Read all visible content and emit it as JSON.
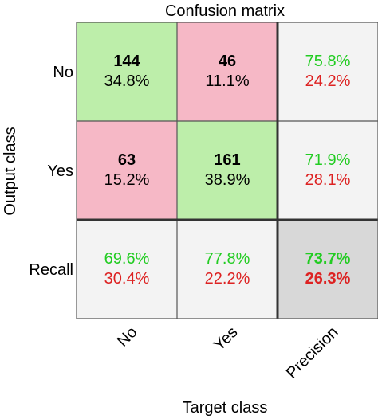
{
  "chart_data": {
    "type": "heatmap",
    "title": "Confusion matrix",
    "xlabel": "Target class",
    "ylabel": "Output class",
    "x_tick_labels": [
      "No",
      "Yes",
      "Precision"
    ],
    "y_tick_labels": [
      "No",
      "Yes",
      "Recall"
    ],
    "grid": true,
    "cells": [
      [
        {
          "count": "144",
          "percent": "34.8%",
          "kind": "correct"
        },
        {
          "count": "46",
          "percent": "11.1%",
          "kind": "error"
        },
        {
          "good": "75.8%",
          "bad": "24.2%",
          "kind": "summary"
        }
      ],
      [
        {
          "count": "63",
          "percent": "15.2%",
          "kind": "error"
        },
        {
          "count": "161",
          "percent": "38.9%",
          "kind": "correct"
        },
        {
          "good": "71.9%",
          "bad": "28.1%",
          "kind": "summary"
        }
      ],
      [
        {
          "good": "69.6%",
          "bad": "30.4%",
          "kind": "summary"
        },
        {
          "good": "77.8%",
          "bad": "22.2%",
          "kind": "summary"
        },
        {
          "good": "73.7%",
          "bad": "26.3%",
          "kind": "overall"
        }
      ]
    ],
    "colors": {
      "correct": "#bdeeaa",
      "error": "#f6b8c6",
      "summary": "#f3f3f3",
      "overall": "#d8d8d8",
      "good_text": "#22cc22",
      "bad_text": "#dd2222",
      "grid": "#555555",
      "thick_grid": "#333333"
    }
  }
}
